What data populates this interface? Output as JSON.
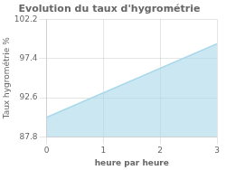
{
  "chart_data": {
    "type": "area",
    "title": "Evolution du taux d'hygrométrie",
    "x_label": "heure par heure",
    "y_label": "Taux hygrométrie %",
    "x": [
      0,
      3
    ],
    "values": [
      90.2,
      99.2
    ],
    "color": "#a8d8ea",
    "xlim": [
      0,
      3
    ],
    "xticks": [
      0,
      1,
      2,
      3
    ],
    "ylim": [
      87.8,
      102.2
    ],
    "yticks": [
      87.8,
      92.6,
      97.4,
      102.2
    ],
    "grid": true
  }
}
